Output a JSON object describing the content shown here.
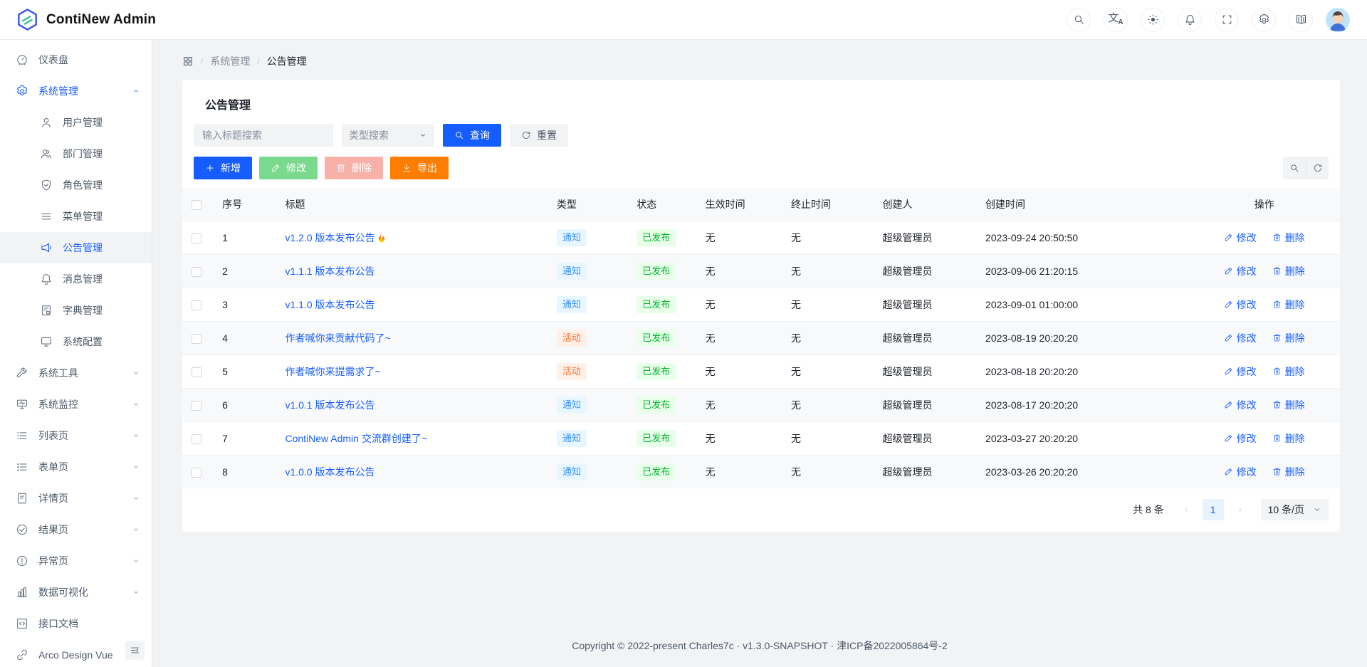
{
  "app": {
    "title": "ContiNew Admin"
  },
  "header": {
    "actions": [
      {
        "key": "global-search",
        "icon": "search"
      },
      {
        "key": "language",
        "icon": "translate"
      },
      {
        "key": "theme",
        "icon": "theme"
      },
      {
        "key": "notification",
        "icon": "notification"
      },
      {
        "key": "fullscreen",
        "icon": "fullscreen"
      },
      {
        "key": "settings",
        "icon": "settings"
      },
      {
        "key": "manual",
        "icon": "manual"
      },
      {
        "key": "avatar",
        "icon": "avatar"
      }
    ]
  },
  "sidebar": {
    "items": [
      {
        "key": "dashboard",
        "label": "仪表盘",
        "icon": "dashboard",
        "level": 1
      },
      {
        "key": "system",
        "label": "系统管理",
        "icon": "settings",
        "level": 1,
        "chevron": "up",
        "active": true
      },
      {
        "key": "user-mgmt",
        "label": "用户管理",
        "icon": "user",
        "level": 2
      },
      {
        "key": "dept-mgmt",
        "label": "部门管理",
        "icon": "users",
        "level": 2
      },
      {
        "key": "role-mgmt",
        "label": "角色管理",
        "icon": "shield",
        "level": 2
      },
      {
        "key": "menu-mgmt",
        "label": "菜单管理",
        "icon": "menu",
        "level": 2
      },
      {
        "key": "announcement-mgmt",
        "label": "公告管理",
        "icon": "megaphone",
        "level": 2,
        "selected": true
      },
      {
        "key": "message-mgmt",
        "label": "消息管理",
        "icon": "bell",
        "level": 2
      },
      {
        "key": "dict-mgmt",
        "label": "字典管理",
        "icon": "dictionary",
        "level": 2
      },
      {
        "key": "system-config",
        "label": "系统配置",
        "icon": "monitor",
        "level": 2
      },
      {
        "key": "system-tools",
        "label": "系统工具",
        "icon": "tool",
        "level": 1,
        "chevron": "down"
      },
      {
        "key": "system-monitor",
        "label": "系统监控",
        "icon": "monitor2",
        "level": 1,
        "chevron": "down"
      },
      {
        "key": "list-pages",
        "label": "列表页",
        "icon": "list",
        "level": 1,
        "chevron": "down"
      },
      {
        "key": "form-pages",
        "label": "表单页",
        "icon": "form",
        "level": 1,
        "chevron": "down"
      },
      {
        "key": "detail-pages",
        "label": "详情页",
        "icon": "file",
        "level": 1,
        "chevron": "down"
      },
      {
        "key": "result-pages",
        "label": "结果页",
        "icon": "check",
        "level": 1,
        "chevron": "down"
      },
      {
        "key": "exception-pages",
        "label": "异常页",
        "icon": "warning",
        "level": 1,
        "chevron": "down"
      },
      {
        "key": "data-visualization",
        "label": "数据可视化",
        "icon": "chart",
        "level": 1,
        "chevron": "down"
      },
      {
        "key": "api-doc",
        "label": "接口文档",
        "icon": "code",
        "level": 1
      },
      {
        "key": "arco-design-vue",
        "label": "Arco Design Vue",
        "icon": "link",
        "level": 1
      }
    ]
  },
  "breadcrumb": {
    "items": [
      "系统管理",
      "公告管理"
    ]
  },
  "page": {
    "title": "公告管理"
  },
  "search": {
    "title_placeholder": "输入标题搜索",
    "type_placeholder": "类型搜索",
    "query_label": "查询",
    "reset_label": "重置"
  },
  "toolbar": {
    "add_label": "新增",
    "edit_label": "修改",
    "delete_label": "删除",
    "export_label": "导出"
  },
  "table": {
    "columns": [
      {
        "key": "checkbox",
        "label": ""
      },
      {
        "key": "num",
        "label": "序号"
      },
      {
        "key": "title",
        "label": "标题"
      },
      {
        "key": "type",
        "label": "类型"
      },
      {
        "key": "status",
        "label": "状态"
      },
      {
        "key": "start_time",
        "label": "生效时间"
      },
      {
        "key": "end_time",
        "label": "终止时间"
      },
      {
        "key": "creator",
        "label": "创建人"
      },
      {
        "key": "created_time",
        "label": "创建时间"
      },
      {
        "key": "ops",
        "label": "操作",
        "align": "center"
      }
    ],
    "tag_colors": {
      "通知": "blue",
      "活动": "orange",
      "已发布": "green"
    },
    "row_actions": {
      "edit": "修改",
      "delete": "删除"
    },
    "rows": [
      {
        "num": "1",
        "title": "v1.2.0 版本发布公告",
        "hot": "🔥",
        "type": "通知",
        "status": "已发布",
        "start_time": "无",
        "end_time": "无",
        "creator": "超级管理员",
        "created_time": "2023-09-24 20:50:50"
      },
      {
        "num": "2",
        "title": "v1.1.1 版本发布公告",
        "type": "通知",
        "status": "已发布",
        "start_time": "无",
        "end_time": "无",
        "creator": "超级管理员",
        "created_time": "2023-09-06 21:20:15"
      },
      {
        "num": "3",
        "title": "v1.1.0 版本发布公告",
        "type": "通知",
        "status": "已发布",
        "start_time": "无",
        "end_time": "无",
        "creator": "超级管理员",
        "created_time": "2023-09-01 01:00:00"
      },
      {
        "num": "4",
        "title": "作者喊你来贡献代码了~",
        "type": "活动",
        "status": "已发布",
        "start_time": "无",
        "end_time": "无",
        "creator": "超级管理员",
        "created_time": "2023-08-19 20:20:20"
      },
      {
        "num": "5",
        "title": "作者喊你来提需求了~",
        "type": "活动",
        "status": "已发布",
        "start_time": "无",
        "end_time": "无",
        "creator": "超级管理员",
        "created_time": "2023-08-18 20:20:20"
      },
      {
        "num": "6",
        "title": "v1.0.1 版本发布公告",
        "type": "通知",
        "status": "已发布",
        "start_time": "无",
        "end_time": "无",
        "creator": "超级管理员",
        "created_time": "2023-08-17 20:20:20"
      },
      {
        "num": "7",
        "title": "ContiNew Admin 交流群创建了~",
        "type": "通知",
        "status": "已发布",
        "start_time": "无",
        "end_time": "无",
        "creator": "超级管理员",
        "created_time": "2023-03-27 20:20:20"
      },
      {
        "num": "8",
        "title": "v1.0.0 版本发布公告",
        "type": "通知",
        "status": "已发布",
        "start_time": "无",
        "end_time": "无",
        "creator": "超级管理员",
        "created_time": "2023-03-26 20:20:20"
      }
    ]
  },
  "pagination": {
    "total": "共 8 条",
    "page": "1",
    "page_size": "10 条/页"
  },
  "footer": {
    "copyright": "Copyright © 2022-present Charles7c · v1.3.0-SNAPSHOT · 津ICP备2022005864号-2"
  },
  "colors": {
    "primary": "#165dff",
    "export_orange": "#ff7d00",
    "edit_green": "#7bd98e",
    "delete_pink": "#f7b1a9",
    "tag_blue_bg": "#e8f7ff",
    "tag_blue_text": "#3491fa",
    "tag_orange_bg": "#fff0e8",
    "tag_orange_text": "#f77234",
    "tag_green_bg": "#e8ffea",
    "tag_green_text": "#00b42a"
  }
}
